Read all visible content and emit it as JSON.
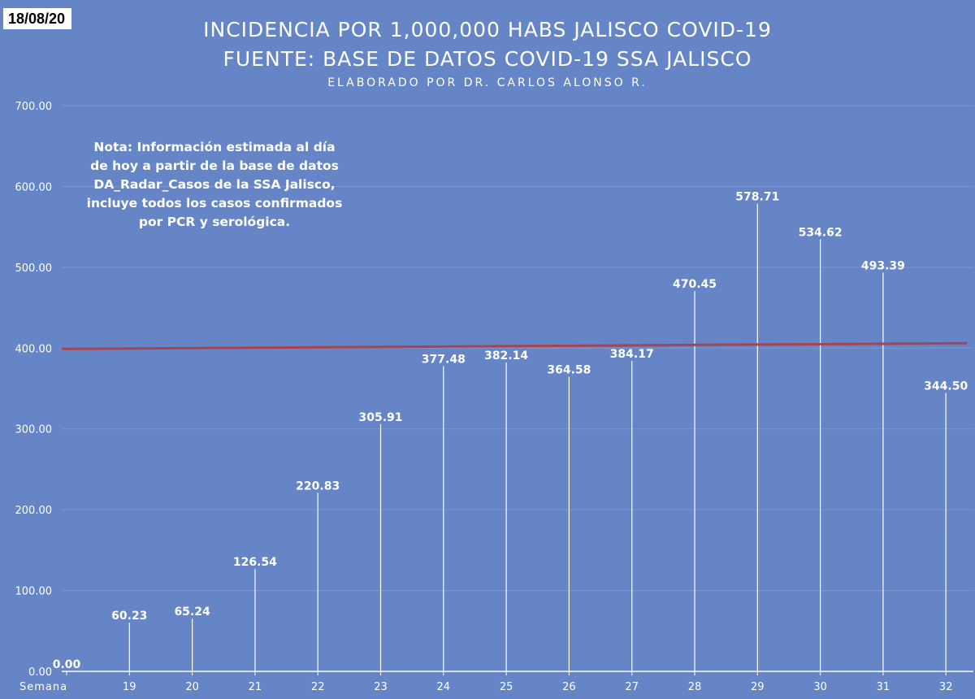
{
  "date_label": "18/08/20",
  "chart_data": {
    "type": "bar",
    "title": "INCIDENCIA POR 1,000,000 HABS JALISCO COVID-19",
    "subtitle": "FUENTE: BASE DE DATOS COVID-19 SSA JALISCO",
    "credit": "ELABORADO POR DR. CARLOS ALONSO R.",
    "note": "Nota: Información estimada al día de hoy a partir de la base de datos DA_Radar_Casos de la SSA Jalisco, incluye todos los casos confirmados por PCR y serológica.",
    "xlabel": "Semana",
    "ylabel": "",
    "categories": [
      "",
      "19",
      "20",
      "21",
      "22",
      "23",
      "24",
      "25",
      "26",
      "27",
      "28",
      "29",
      "30",
      "31",
      "32"
    ],
    "values": [
      0.0,
      60.23,
      65.24,
      126.54,
      220.83,
      305.91,
      377.48,
      382.14,
      364.58,
      384.17,
      470.45,
      578.71,
      534.62,
      493.39,
      344.5
    ],
    "data_labels": [
      "0.00",
      "60.23",
      "65.24",
      "126.54",
      "220.83",
      "305.91",
      "377.48",
      "382.14",
      "364.58",
      "384.17",
      "470.45",
      "578.71",
      "534.62",
      "493.39",
      "344.50"
    ],
    "ylim": [
      0,
      700
    ],
    "yticks": [
      "0.00",
      "100.00",
      "200.00",
      "300.00",
      "400.00",
      "500.00",
      "600.00",
      "700.00"
    ],
    "reference_line": {
      "value": 400,
      "color": "#a6454f"
    },
    "colors": {
      "background": "#6585c6",
      "bars": "#ffffff",
      "gridlines": "#7d97cd",
      "text": "#ffffff"
    },
    "grid": true,
    "legend": "none"
  }
}
